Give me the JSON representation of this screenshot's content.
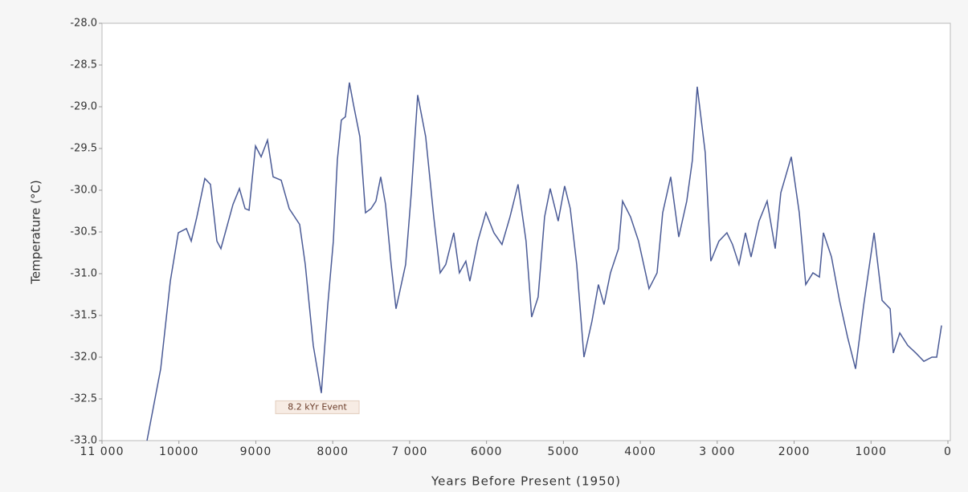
{
  "chart_data": {
    "type": "line",
    "xlabel": "Years Before Present (1950)",
    "ylabel": "Temperature (°C)",
    "annotation": {
      "text": "8.2 kYr Event",
      "x": 8200,
      "y": -32.6
    },
    "x": [
      10415,
      10237,
      10112,
      10008,
      9903,
      9840,
      9767,
      9663,
      9590,
      9506,
      9454,
      9297,
      9213,
      9140,
      9088,
      9004,
      8931,
      8848,
      8775,
      8670,
      8566,
      8430,
      8357,
      8253,
      8148,
      8065,
      7992,
      7940,
      7888,
      7835,
      7783,
      7731,
      7647,
      7574,
      7501,
      7438,
      7376,
      7313,
      7240,
      7177,
      7052,
      6978,
      6895,
      6791,
      6686,
      6603,
      6530,
      6426,
      6353,
      6269,
      6217,
      6113,
      6008,
      5904,
      5799,
      5695,
      5590,
      5486,
      5413,
      5329,
      5245,
      5172,
      5068,
      4984,
      4911,
      4827,
      4733,
      4629,
      4545,
      4472,
      4388,
      4284,
      4231,
      4127,
      4023,
      3887,
      3782,
      3709,
      3605,
      3500,
      3396,
      3323,
      3260,
      3156,
      3083,
      2978,
      2874,
      2801,
      2717,
      2633,
      2560,
      2456,
      2351,
      2246,
      2173,
      2037,
      1933,
      1849,
      1755,
      1671,
      1619,
      1514,
      1410,
      1305,
      1201,
      1096,
      960,
      856,
      751,
      710,
      626,
      522,
      417,
      313,
      208,
      146,
      83
    ],
    "series": [
      {
        "name": "Temperature",
        "color": "#4b5b96",
        "values": [
          -33.0,
          -32.14,
          -31.09,
          -30.51,
          -30.46,
          -30.61,
          -30.32,
          -29.86,
          -29.93,
          -30.61,
          -30.7,
          -30.17,
          -29.98,
          -30.22,
          -30.24,
          -29.47,
          -29.6,
          -29.4,
          -29.84,
          -29.88,
          -30.22,
          -30.41,
          -30.89,
          -31.86,
          -32.43,
          -31.38,
          -30.61,
          -29.64,
          -29.16,
          -29.12,
          -28.71,
          -28.97,
          -29.36,
          -30.27,
          -30.22,
          -30.13,
          -29.84,
          -30.17,
          -30.89,
          -31.42,
          -30.89,
          -30.03,
          -28.86,
          -29.36,
          -30.32,
          -30.99,
          -30.89,
          -30.51,
          -30.99,
          -30.85,
          -31.09,
          -30.61,
          -30.27,
          -30.51,
          -30.65,
          -30.32,
          -29.93,
          -30.61,
          -31.52,
          -31.28,
          -30.32,
          -29.98,
          -30.37,
          -29.95,
          -30.22,
          -30.89,
          -32.0,
          -31.57,
          -31.13,
          -31.37,
          -30.99,
          -30.7,
          -30.13,
          -30.32,
          -30.61,
          -31.18,
          -30.99,
          -30.27,
          -29.84,
          -30.56,
          -30.13,
          -29.64,
          -28.76,
          -29.55,
          -30.85,
          -30.61,
          -30.51,
          -30.65,
          -30.89,
          -30.51,
          -30.8,
          -30.37,
          -30.13,
          -30.7,
          -30.03,
          -29.6,
          -30.27,
          -31.13,
          -30.99,
          -31.04,
          -30.51,
          -30.8,
          -31.32,
          -31.76,
          -32.14,
          -31.38,
          -30.51,
          -31.32,
          -31.42,
          -31.95,
          -31.71,
          -31.86,
          -31.95,
          -32.05,
          -32.0,
          -32.0,
          -31.62
        ]
      }
    ],
    "xlim": [
      11000,
      0
    ],
    "xticks": [
      {
        "value": 11000,
        "label": "11 000"
      },
      10000,
      9000,
      8000,
      {
        "value": 7000,
        "label": "7 000"
      },
      6000,
      5000,
      4000,
      {
        "value": 3000,
        "label": "3 000"
      },
      2000,
      1000,
      0
    ],
    "ylim": [
      -33.0,
      -28.0
    ],
    "yticks": [
      {
        "value": -28.0,
        "label": "-28.0"
      },
      {
        "value": -28.5,
        "label": "-28.5"
      },
      {
        "value": -29.0,
        "label": "-29.0"
      },
      {
        "value": -29.5,
        "label": "-29.5"
      },
      {
        "value": -30.0,
        "label": "-30.0"
      },
      {
        "value": -30.5,
        "label": "-30.5"
      },
      {
        "value": -31.0,
        "label": "-31.0"
      },
      {
        "value": -31.5,
        "label": "-31.5"
      },
      {
        "value": -32.0,
        "label": "-32.0"
      },
      {
        "value": -32.5,
        "label": "-32.5"
      },
      {
        "value": -33.0,
        "label": "-33.0"
      }
    ],
    "grid": false
  }
}
